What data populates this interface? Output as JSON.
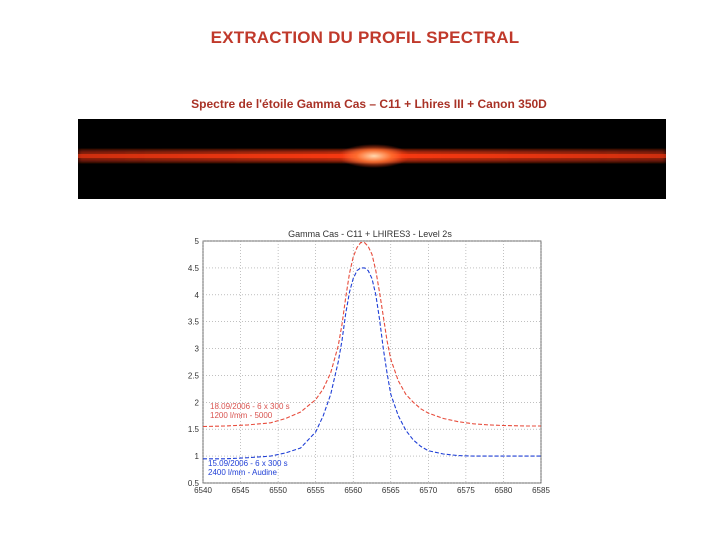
{
  "page": {
    "title": "EXTRACTION DU PROFIL SPECTRAL",
    "subtitle": "Spectre de l'étoile Gamma Cas – C11 + Lhires III + Canon 350D"
  },
  "colors": {
    "title": "#c0392b",
    "subtitle": "#a93226",
    "series_red": "#e74c3c",
    "series_blue": "#1f3fd6",
    "legend_red": "#d9534f",
    "legend_blue": "#1f3fd6",
    "spectrum_glow": "#ff4a1c"
  },
  "chart_data": {
    "type": "line",
    "title": "Gamma Cas - C11 + LHIRES3 - Level 2s",
    "xlabel": "",
    "ylabel": "",
    "xlim": [
      6540,
      6585
    ],
    "ylim": [
      0.5,
      5
    ],
    "x_ticks": [
      6540,
      6545,
      6550,
      6555,
      6560,
      6565,
      6570,
      6575,
      6580,
      6585
    ],
    "y_ticks": [
      0.5,
      1,
      1.5,
      2,
      2.5,
      3,
      3.5,
      4,
      4.5,
      5
    ],
    "y_tick_labels": [
      "0.5",
      "1",
      "1.5",
      "2",
      "2.5",
      "3",
      "3.5",
      "4",
      "4.5",
      "5"
    ],
    "grid": true,
    "series": [
      {
        "name": "18.09/2006 - 6 x 300 s",
        "name_line2": "1200 l/mm - 5000",
        "color_key": "series_red",
        "x": [
          6540,
          6543,
          6546,
          6549,
          6551,
          6553,
          6555,
          6556,
          6557,
          6558,
          6558.5,
          6559,
          6559.5,
          6560,
          6560.5,
          6561,
          6561.5,
          6562,
          6562.5,
          6563,
          6563.5,
          6564,
          6564.5,
          6565,
          6566,
          6567,
          6568,
          6569,
          6570,
          6572,
          6574,
          6576,
          6578,
          6580,
          6583,
          6585
        ],
        "y": [
          1.55,
          1.56,
          1.58,
          1.62,
          1.7,
          1.82,
          2.05,
          2.25,
          2.55,
          3.05,
          3.45,
          3.95,
          4.4,
          4.7,
          4.88,
          4.97,
          4.97,
          4.9,
          4.75,
          4.45,
          4.05,
          3.6,
          3.15,
          2.8,
          2.4,
          2.15,
          2.0,
          1.88,
          1.8,
          1.7,
          1.64,
          1.6,
          1.58,
          1.57,
          1.56,
          1.56
        ]
      },
      {
        "name": "15.09/2006 - 6 x 300 s",
        "name_line2": "2400 l/mm - Audine",
        "color_key": "series_blue",
        "x": [
          6540,
          6543,
          6546,
          6549,
          6551,
          6553,
          6555,
          6556,
          6557,
          6558,
          6558.5,
          6559,
          6559.5,
          6560,
          6560.5,
          6561,
          6561.5,
          6562,
          6562.5,
          6563,
          6563.5,
          6564,
          6564.5,
          6565,
          6566,
          6567,
          6568,
          6569,
          6570,
          6572,
          6574,
          6576,
          6578,
          6580,
          6583,
          6585
        ],
        "y": [
          0.95,
          0.95,
          0.97,
          1.0,
          1.06,
          1.15,
          1.45,
          1.75,
          2.15,
          2.75,
          3.15,
          3.65,
          4.05,
          4.3,
          4.45,
          4.5,
          4.5,
          4.45,
          4.3,
          4.0,
          3.55,
          3.0,
          2.55,
          2.15,
          1.75,
          1.48,
          1.3,
          1.18,
          1.1,
          1.04,
          1.01,
          1.0,
          1.0,
          1.0,
          1.0,
          1.0
        ]
      }
    ]
  }
}
